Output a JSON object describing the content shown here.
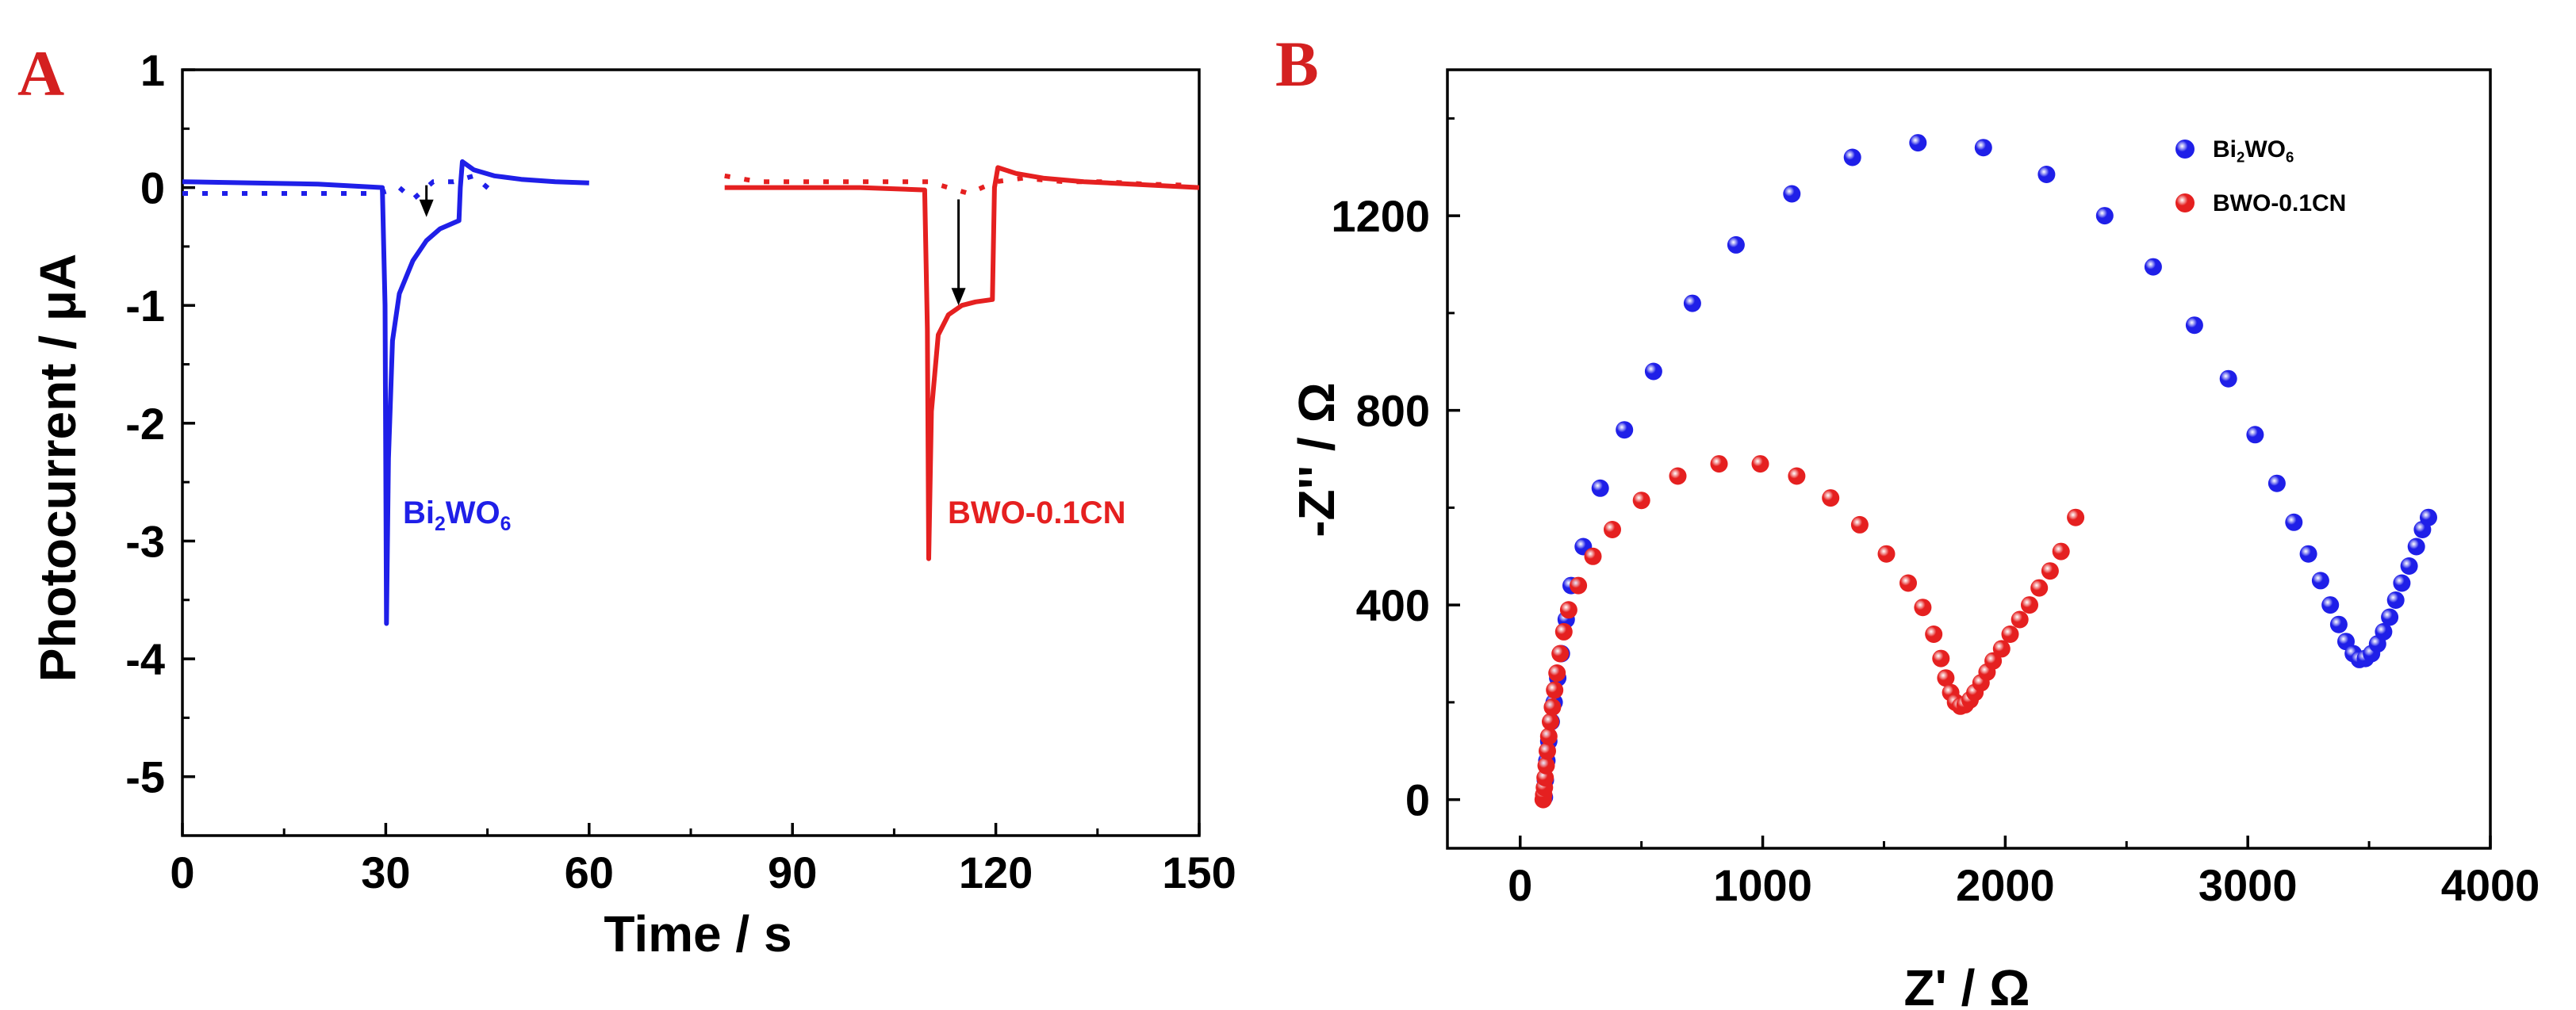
{
  "chart_data": [
    {
      "type": "line",
      "panel": "A",
      "xlabel": "Time / s",
      "ylabel": "Photocurrent / μA",
      "xlim": [
        0,
        150
      ],
      "ylim": [
        -5.5,
        1
      ],
      "xticks": [
        "0",
        "30",
        "60",
        "90",
        "120",
        "150"
      ],
      "yticks": [
        "1",
        "0",
        "-1",
        "-2",
        "-3",
        "-4",
        "-5"
      ],
      "series": [
        {
          "name": "Bi2WO6",
          "label_parts": [
            "Bi",
            "2",
            "WO",
            "6"
          ],
          "color": "#1f1fe8",
          "solid": [
            [
              0,
              0.05
            ],
            [
              20,
              0.03
            ],
            [
              29.5,
              0.0
            ],
            [
              29.9,
              -1.0
            ],
            [
              30.1,
              -3.7
            ],
            [
              30.4,
              -2.3
            ],
            [
              31,
              -1.3
            ],
            [
              32,
              -0.9
            ],
            [
              34,
              -0.62
            ],
            [
              36,
              -0.45
            ],
            [
              38,
              -0.35
            ],
            [
              40.8,
              -0.28
            ],
            [
              41,
              0.0
            ],
            [
              41.3,
              0.22
            ],
            [
              43,
              0.15
            ],
            [
              46,
              0.1
            ],
            [
              50,
              0.07
            ],
            [
              55,
              0.05
            ],
            [
              60,
              0.04
            ]
          ],
          "dotted": [
            [
              0,
              -0.05
            ],
            [
              5,
              -0.05
            ],
            [
              10,
              -0.05
            ],
            [
              15,
              -0.05
            ],
            [
              20,
              -0.05
            ],
            [
              25,
              -0.05
            ],
            [
              29,
              -0.05
            ],
            [
              32,
              0.0
            ],
            [
              34,
              -0.1
            ],
            [
              37,
              0.05
            ],
            [
              40,
              0.05
            ],
            [
              43,
              0.1
            ],
            [
              46,
              -0.05
            ]
          ],
          "arrow": {
            "x": 36,
            "from": 0.02,
            "to": -0.25
          }
        },
        {
          "name": "BWO-0.1CN",
          "label_parts": [
            "BWO-0.1CN"
          ],
          "color": "#e52020",
          "solid": [
            [
              80,
              0.0
            ],
            [
              90,
              0.0
            ],
            [
              100,
              0.0
            ],
            [
              109.5,
              -0.02
            ],
            [
              109.9,
              -1.2
            ],
            [
              110.1,
              -3.15
            ],
            [
              110.5,
              -1.9
            ],
            [
              111.5,
              -1.25
            ],
            [
              113,
              -1.08
            ],
            [
              115,
              -1.0
            ],
            [
              117,
              -0.97
            ],
            [
              119.5,
              -0.95
            ],
            [
              119.8,
              0.0
            ],
            [
              120.3,
              0.17
            ],
            [
              123,
              0.12
            ],
            [
              127,
              0.08
            ],
            [
              133,
              0.05
            ],
            [
              140,
              0.03
            ],
            [
              150,
              0.0
            ]
          ],
          "dotted": [
            [
              80,
              0.1
            ],
            [
              85,
              0.05
            ],
            [
              90,
              0.05
            ],
            [
              95,
              0.05
            ],
            [
              100,
              0.05
            ],
            [
              105,
              0.05
            ],
            [
              110,
              0.05
            ],
            [
              113,
              0.0
            ],
            [
              116,
              -0.05
            ],
            [
              120,
              0.05
            ],
            [
              124,
              0.08
            ],
            [
              130,
              0.05
            ],
            [
              136,
              0.05
            ],
            [
              142,
              0.03
            ],
            [
              148,
              0.02
            ]
          ],
          "arrow": {
            "x": 114.5,
            "from": -0.1,
            "to": -1.0
          }
        }
      ],
      "annotations": [
        "Bi2WO6",
        "BWO-0.1CN"
      ]
    },
    {
      "type": "scatter",
      "panel": "B",
      "xlabel": "Z' / Ω",
      "ylabel": "-Z'' / Ω",
      "xlim": [
        -300,
        4000
      ],
      "ylim": [
        -100,
        1500
      ],
      "xticks": [
        "0",
        "1000",
        "2000",
        "3000",
        "4000"
      ],
      "yticks": [
        "0",
        "400",
        "800",
        "1200"
      ],
      "legend_position": "top-right",
      "series": [
        {
          "name": "Bi2WO6",
          "label_parts": [
            "Bi",
            "2",
            "WO",
            "6"
          ],
          "color": "#1f1fe8",
          "points": [
            [
              100,
              5
            ],
            [
              104,
              40
            ],
            [
              110,
              80
            ],
            [
              118,
              120
            ],
            [
              128,
              160
            ],
            [
              140,
              200
            ],
            [
              155,
              250
            ],
            [
              170,
              300
            ],
            [
              190,
              370
            ],
            [
              210,
              440
            ],
            [
              260,
              520
            ],
            [
              330,
              640
            ],
            [
              430,
              760
            ],
            [
              550,
              880
            ],
            [
              710,
              1020
            ],
            [
              890,
              1140
            ],
            [
              1120,
              1245
            ],
            [
              1370,
              1320
            ],
            [
              1640,
              1350
            ],
            [
              1910,
              1340
            ],
            [
              2170,
              1285
            ],
            [
              2410,
              1200
            ],
            [
              2610,
              1095
            ],
            [
              2780,
              975
            ],
            [
              2920,
              865
            ],
            [
              3030,
              750
            ],
            [
              3120,
              650
            ],
            [
              3190,
              570
            ],
            [
              3250,
              505
            ],
            [
              3300,
              450
            ],
            [
              3340,
              400
            ],
            [
              3375,
              360
            ],
            [
              3405,
              325
            ],
            [
              3435,
              300
            ],
            [
              3460,
              288
            ],
            [
              3485,
              290
            ],
            [
              3510,
              300
            ],
            [
              3535,
              320
            ],
            [
              3560,
              345
            ],
            [
              3585,
              375
            ],
            [
              3610,
              410
            ],
            [
              3635,
              445
            ],
            [
              3665,
              480
            ],
            [
              3695,
              520
            ],
            [
              3720,
              555
            ],
            [
              3745,
              580
            ]
          ]
        },
        {
          "name": "BWO-0.1CN",
          "label_parts": [
            "BWO-0.1CN"
          ],
          "color": "#e52020",
          "points": [
            [
              95,
              0
            ],
            [
              97,
              10
            ],
            [
              100,
              25
            ],
            [
              103,
              45
            ],
            [
              107,
              70
            ],
            [
              112,
              100
            ],
            [
              118,
              130
            ],
            [
              125,
              160
            ],
            [
              133,
              190
            ],
            [
              142,
              225
            ],
            [
              152,
              260
            ],
            [
              165,
              300
            ],
            [
              180,
              345
            ],
            [
              200,
              390
            ],
            [
              240,
              440
            ],
            [
              300,
              500
            ],
            [
              380,
              555
            ],
            [
              500,
              615
            ],
            [
              650,
              665
            ],
            [
              820,
              690
            ],
            [
              990,
              690
            ],
            [
              1140,
              665
            ],
            [
              1280,
              620
            ],
            [
              1400,
              565
            ],
            [
              1510,
              505
            ],
            [
              1600,
              445
            ],
            [
              1660,
              395
            ],
            [
              1705,
              340
            ],
            [
              1735,
              290
            ],
            [
              1755,
              250
            ],
            [
              1775,
              220
            ],
            [
              1795,
              200
            ],
            [
              1815,
              192
            ],
            [
              1835,
              195
            ],
            [
              1855,
              205
            ],
            [
              1875,
              220
            ],
            [
              1900,
              240
            ],
            [
              1925,
              262
            ],
            [
              1950,
              285
            ],
            [
              1985,
              310
            ],
            [
              2020,
              340
            ],
            [
              2060,
              370
            ],
            [
              2100,
              400
            ],
            [
              2140,
              435
            ],
            [
              2185,
              470
            ],
            [
              2230,
              510
            ],
            [
              2290,
              580
            ]
          ]
        }
      ]
    }
  ]
}
